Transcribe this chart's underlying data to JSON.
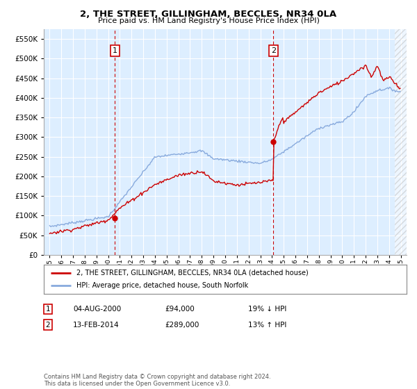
{
  "title": "2, THE STREET, GILLINGHAM, BECCLES, NR34 0LA",
  "subtitle": "Price paid vs. HM Land Registry's House Price Index (HPI)",
  "sale1_date": "04-AUG-2000",
  "sale1_price": 94000,
  "sale1_year": 2000.58,
  "sale2_date": "13-FEB-2014",
  "sale2_price": 289000,
  "sale2_year": 2014.12,
  "legend_line1": "2, THE STREET, GILLINGHAM, BECCLES, NR34 0LA (detached house)",
  "legend_line2": "HPI: Average price, detached house, South Norfolk",
  "table_row1_num": "1",
  "table_row1_date": "04-AUG-2000",
  "table_row1_price": "£94,000",
  "table_row1_hpi": "19% ↓ HPI",
  "table_row2_num": "2",
  "table_row2_date": "13-FEB-2014",
  "table_row2_price": "£289,000",
  "table_row2_hpi": "13% ↑ HPI",
  "footnote": "Contains HM Land Registry data © Crown copyright and database right 2024.\nThis data is licensed under the Open Government Licence v3.0.",
  "line_color_red": "#cc0000",
  "line_color_blue": "#88aadd",
  "bg_color": "#ddeeff",
  "hatch_bg": "#e8e8e8",
  "grid_color": "#ffffff",
  "ylim_max": 575000,
  "xlim_start": 1994.5,
  "xlim_end": 2025.5,
  "hatch_start": 2024.5,
  "yticks": [
    0,
    50000,
    100000,
    150000,
    200000,
    250000,
    300000,
    350000,
    400000,
    450000,
    500000,
    550000
  ]
}
